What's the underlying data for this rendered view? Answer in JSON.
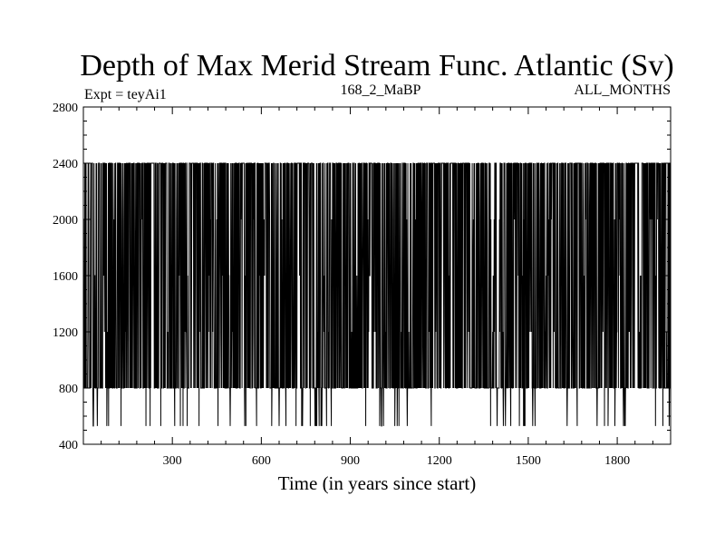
{
  "chart_data": {
    "type": "line",
    "title": "Depth of Max Merid Stream Func. Atlantic (Sv)",
    "subtitle_left": "Expt = teyAi1",
    "subtitle_center": "168_2_MaBP",
    "subtitle_right": "ALL_MONTHS",
    "xlabel": "Time (in years since start)",
    "ylabel": "",
    "xlim": [
      0,
      1980
    ],
    "ylim": [
      400,
      2800
    ],
    "x_ticks": [
      300,
      600,
      900,
      1200,
      1500,
      1800
    ],
    "y_ticks": [
      400,
      800,
      1200,
      1600,
      2000,
      2400,
      2800
    ],
    "x_tick_labels": [
      "300",
      "600",
      "900",
      "1200",
      "1500",
      "1800"
    ],
    "y_tick_labels": [
      "400",
      "800",
      "1200",
      "1600",
      "2000",
      "2400",
      "2800"
    ],
    "grid": false,
    "series": [
      {
        "name": "depth_of_max_stream_function",
        "description_levels": [
          530,
          800,
          1200,
          1600,
          2000,
          2400
        ],
        "x_start": 0,
        "x_step": 1,
        "count": 1980,
        "typical_range": [
          800,
          2400
        ],
        "occasional_min": 530,
        "max": 2400
      }
    ]
  }
}
